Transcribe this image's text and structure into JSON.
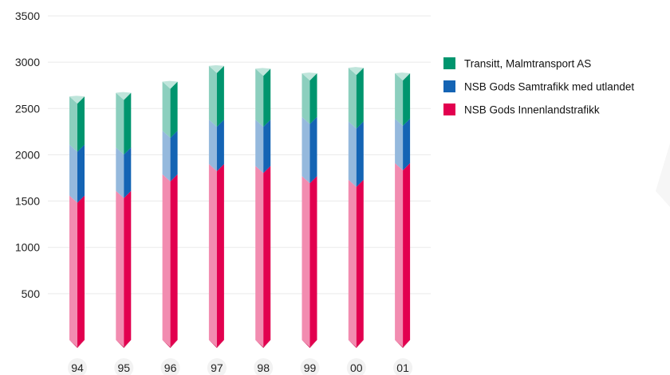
{
  "chart_data": {
    "type": "bar",
    "stacked": true,
    "categories": [
      "94",
      "95",
      "96",
      "97",
      "98",
      "99",
      "00",
      "01"
    ],
    "series": [
      {
        "name": "NSB Gods Innenlandstrafikk",
        "color": "#e2004f",
        "values": [
          1560,
          1610,
          1790,
          1900,
          1880,
          1770,
          1730,
          1910
        ]
      },
      {
        "name": "NSB Gods Samtrafikk med utlandet",
        "color": "#1464b4",
        "values": [
          550,
          470,
          470,
          480,
          500,
          640,
          630,
          480
        ]
      },
      {
        "name": "Transitt, Malmtransport AS",
        "color": "#00956e",
        "values": [
          520,
          590,
          530,
          580,
          550,
          470,
          580,
          490
        ]
      }
    ],
    "title": "",
    "xlabel": "",
    "ylabel": "",
    "ylim": [
      0,
      3500
    ],
    "yticks": [
      "500",
      "1000",
      "1500",
      "2000",
      "2500",
      "3000",
      "3500"
    ],
    "grid": true,
    "legend_position": "right",
    "legend_order": [
      "Transitt, Malmtransport AS",
      "NSB Gods Samtrafikk med utlandet",
      "NSB Gods Innenlandstrafikk"
    ]
  }
}
